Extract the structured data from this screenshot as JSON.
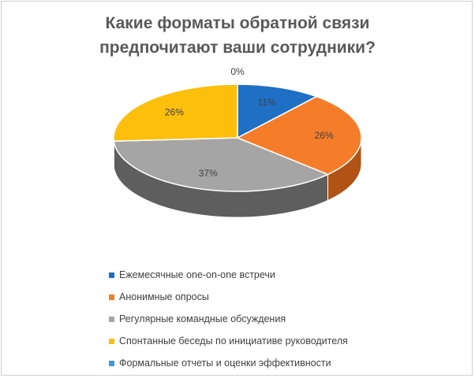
{
  "chart_data": {
    "type": "pie",
    "title": "Какие форматы обратной связи предпочитают ваши сотрудники?",
    "title_lines": [
      "Какие форматы обратной связи",
      "предпочитают ваши сотрудники?"
    ],
    "categories": [
      "Ежемесячные one-on-one встречи",
      "Анонимные опросы",
      "Регулярные командные обсуждения",
      "Спонтанные беседы по инициативе руководителя",
      "Формальные отчеты и оценки эффективности"
    ],
    "values": [
      11,
      26,
      37,
      26,
      0
    ],
    "labels": [
      "11%",
      "26%",
      "37%",
      "26%",
      "0%"
    ],
    "colors": [
      "#1f6fc5",
      "#f57d2a",
      "#a5a5a5",
      "#fbbf0c",
      "#4299d6"
    ],
    "side_colors": [
      "#124a8a",
      "#b05314",
      "#5e5e5e",
      "#a87d05",
      "#2a6fa3"
    ],
    "legend_position": "bottom"
  }
}
